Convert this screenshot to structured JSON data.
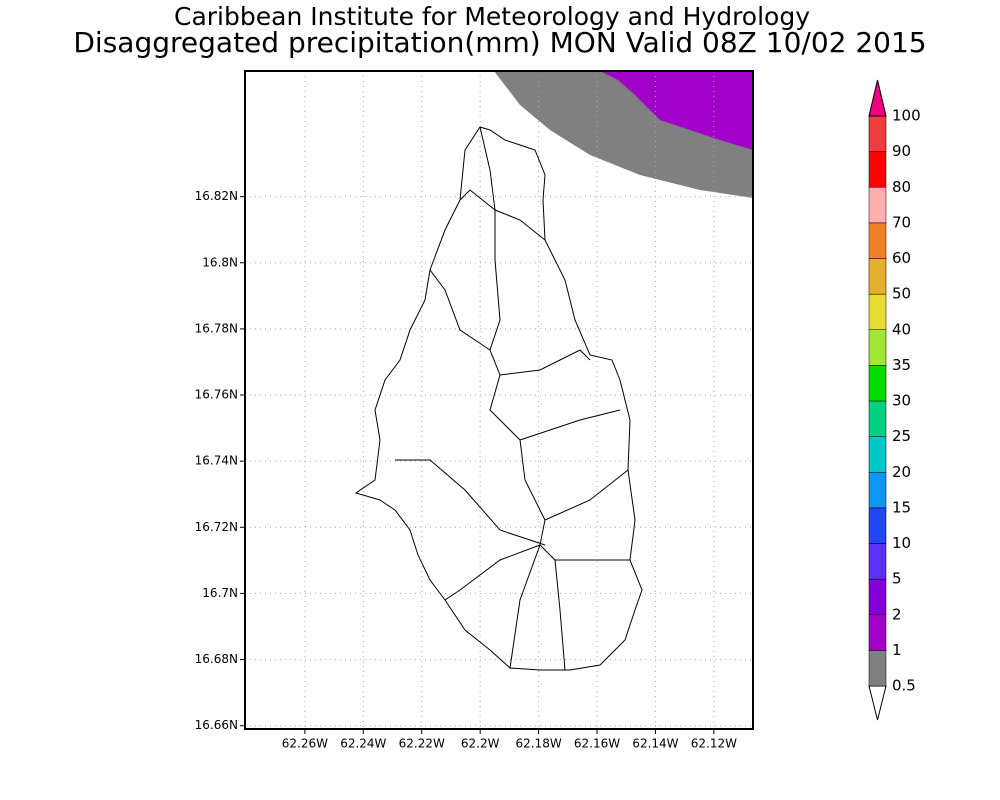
{
  "chart_data": {
    "type": "map",
    "title": "Caribbean Institute for Meteorology and Hydrology",
    "subtitle": "Disaggregated precipitation(mm) MON Valid 08Z 10/02 2015",
    "xlim": [
      -62.2805,
      -62.1066
    ],
    "ylim": [
      16.659,
      16.858
    ],
    "xticks": [
      {
        "value": -62.26,
        "label": "62.26W"
      },
      {
        "value": -62.24,
        "label": "62.24W"
      },
      {
        "value": -62.22,
        "label": "62.22W"
      },
      {
        "value": -62.2,
        "label": "62.2W"
      },
      {
        "value": -62.18,
        "label": "62.18W"
      },
      {
        "value": -62.16,
        "label": "62.16W"
      },
      {
        "value": -62.14,
        "label": "62.14W"
      },
      {
        "value": -62.12,
        "label": "62.12W"
      }
    ],
    "yticks": [
      {
        "value": 16.66,
        "label": "16.66N"
      },
      {
        "value": 16.68,
        "label": "16.68N"
      },
      {
        "value": 16.7,
        "label": "16.7N"
      },
      {
        "value": 16.72,
        "label": "16.72N"
      },
      {
        "value": 16.74,
        "label": "16.74N"
      },
      {
        "value": 16.76,
        "label": "16.76N"
      },
      {
        "value": 16.78,
        "label": "16.78N"
      },
      {
        "value": 16.8,
        "label": "16.8N"
      },
      {
        "value": 16.82,
        "label": "16.82N"
      }
    ],
    "grid": true,
    "colorbar": {
      "levels": [
        0.5,
        1,
        2,
        5,
        10,
        15,
        20,
        25,
        30,
        35,
        40,
        50,
        60,
        70,
        80,
        90,
        100
      ],
      "colors": [
        "#ffffff",
        "#808080",
        "#a000c8",
        "#8200dc",
        "#5a32f5",
        "#2346f5",
        "#0f96f0",
        "#00c8c8",
        "#00d282",
        "#00dc00",
        "#a0e632",
        "#e6dc32",
        "#e6af2d",
        "#f08228",
        "#ffafaf",
        "#ff0000",
        "#f03c3c",
        "#f00082"
      ]
    }
  }
}
